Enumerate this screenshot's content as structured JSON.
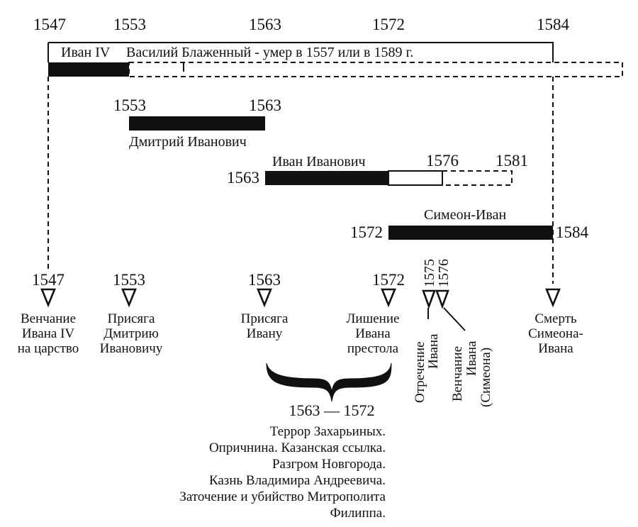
{
  "top_years": [
    "1547",
    "1553",
    "1563",
    "1572",
    "1584"
  ],
  "bracket_caption": {
    "ivan4": "Иван IV",
    "vasily": "Василий Блаженный - умер в 1557 или в 1589 г."
  },
  "dmitry": {
    "start": "1553",
    "end": "1563",
    "name": "Дмитрий Иванович"
  },
  "ivan_ivanovich": {
    "name": "Иван Иванович",
    "start": "1563",
    "mid": "1576",
    "end": "1581"
  },
  "simeon": {
    "name": "Симеон-Иван",
    "start": "1572",
    "end": "1584"
  },
  "events": {
    "e1547": {
      "year": "1547",
      "lines": [
        "Венчание",
        "Ивана IV",
        "на царство"
      ]
    },
    "e1553": {
      "year": "1553",
      "lines": [
        "Присяга",
        "Дмитрию",
        "Ивановичу"
      ]
    },
    "e1563": {
      "year": "1563",
      "lines": [
        "Присяга",
        "Ивану"
      ]
    },
    "e1572": {
      "year": "1572",
      "lines": [
        "Лишение",
        "Ивана",
        "престола"
      ]
    },
    "e1575": {
      "year": "1575",
      "lines": [
        "Отречение",
        "Ивана"
      ]
    },
    "e1576": {
      "year": "1576",
      "lines": [
        "Венчание",
        "Ивана",
        "(Симеона)"
      ]
    },
    "e1584": {
      "lines": [
        "Смерть",
        "Симеона-",
        "Ивана"
      ]
    }
  },
  "range": {
    "label": "1563 — 1572",
    "lines": [
      "Террор Захарьиных.",
      "Опричнина. Казанская ссылка.",
      "Разгром Новгорода.",
      "Казнь Владимира Андреевича.",
      "Заточение и убийство Митрополита",
      "Филиппа."
    ]
  }
}
